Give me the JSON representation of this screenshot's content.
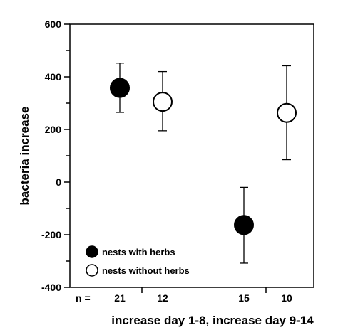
{
  "chart_data": {
    "type": "scatter",
    "xlabel": "increase day 1-8, increase day 9-14",
    "ylabel": "bacteria increase",
    "ylim": [
      -400,
      600
    ],
    "y_ticks": [
      "600",
      "400",
      "200",
      "0",
      "-200",
      "-400"
    ],
    "y_tick_values": [
      600,
      400,
      200,
      0,
      -200,
      -400
    ],
    "grid": false,
    "legend_position": "bottom-left",
    "sample_size_prefix": "n =",
    "groups": [
      {
        "period": "increase day 1-8"
      },
      {
        "period": "increase day 9-14"
      }
    ],
    "series": [
      {
        "name": "nests with herbs",
        "marker": "filled-circle",
        "points": [
          {
            "group": 0,
            "y": 358,
            "err_low": 265,
            "err_high": 452,
            "n": "21"
          },
          {
            "group": 1,
            "y": -163,
            "err_low": -308,
            "err_high": -20,
            "n": "15"
          }
        ]
      },
      {
        "name": "nests without herbs",
        "marker": "open-circle",
        "points": [
          {
            "group": 0,
            "y": 305,
            "err_low": 195,
            "err_high": 420,
            "n": "12"
          },
          {
            "group": 1,
            "y": 263,
            "err_low": 85,
            "err_high": 442,
            "n": "10"
          }
        ]
      }
    ]
  },
  "colors": {
    "filled": "#000000",
    "open_fill": "#ffffff",
    "stroke": "#000000"
  }
}
